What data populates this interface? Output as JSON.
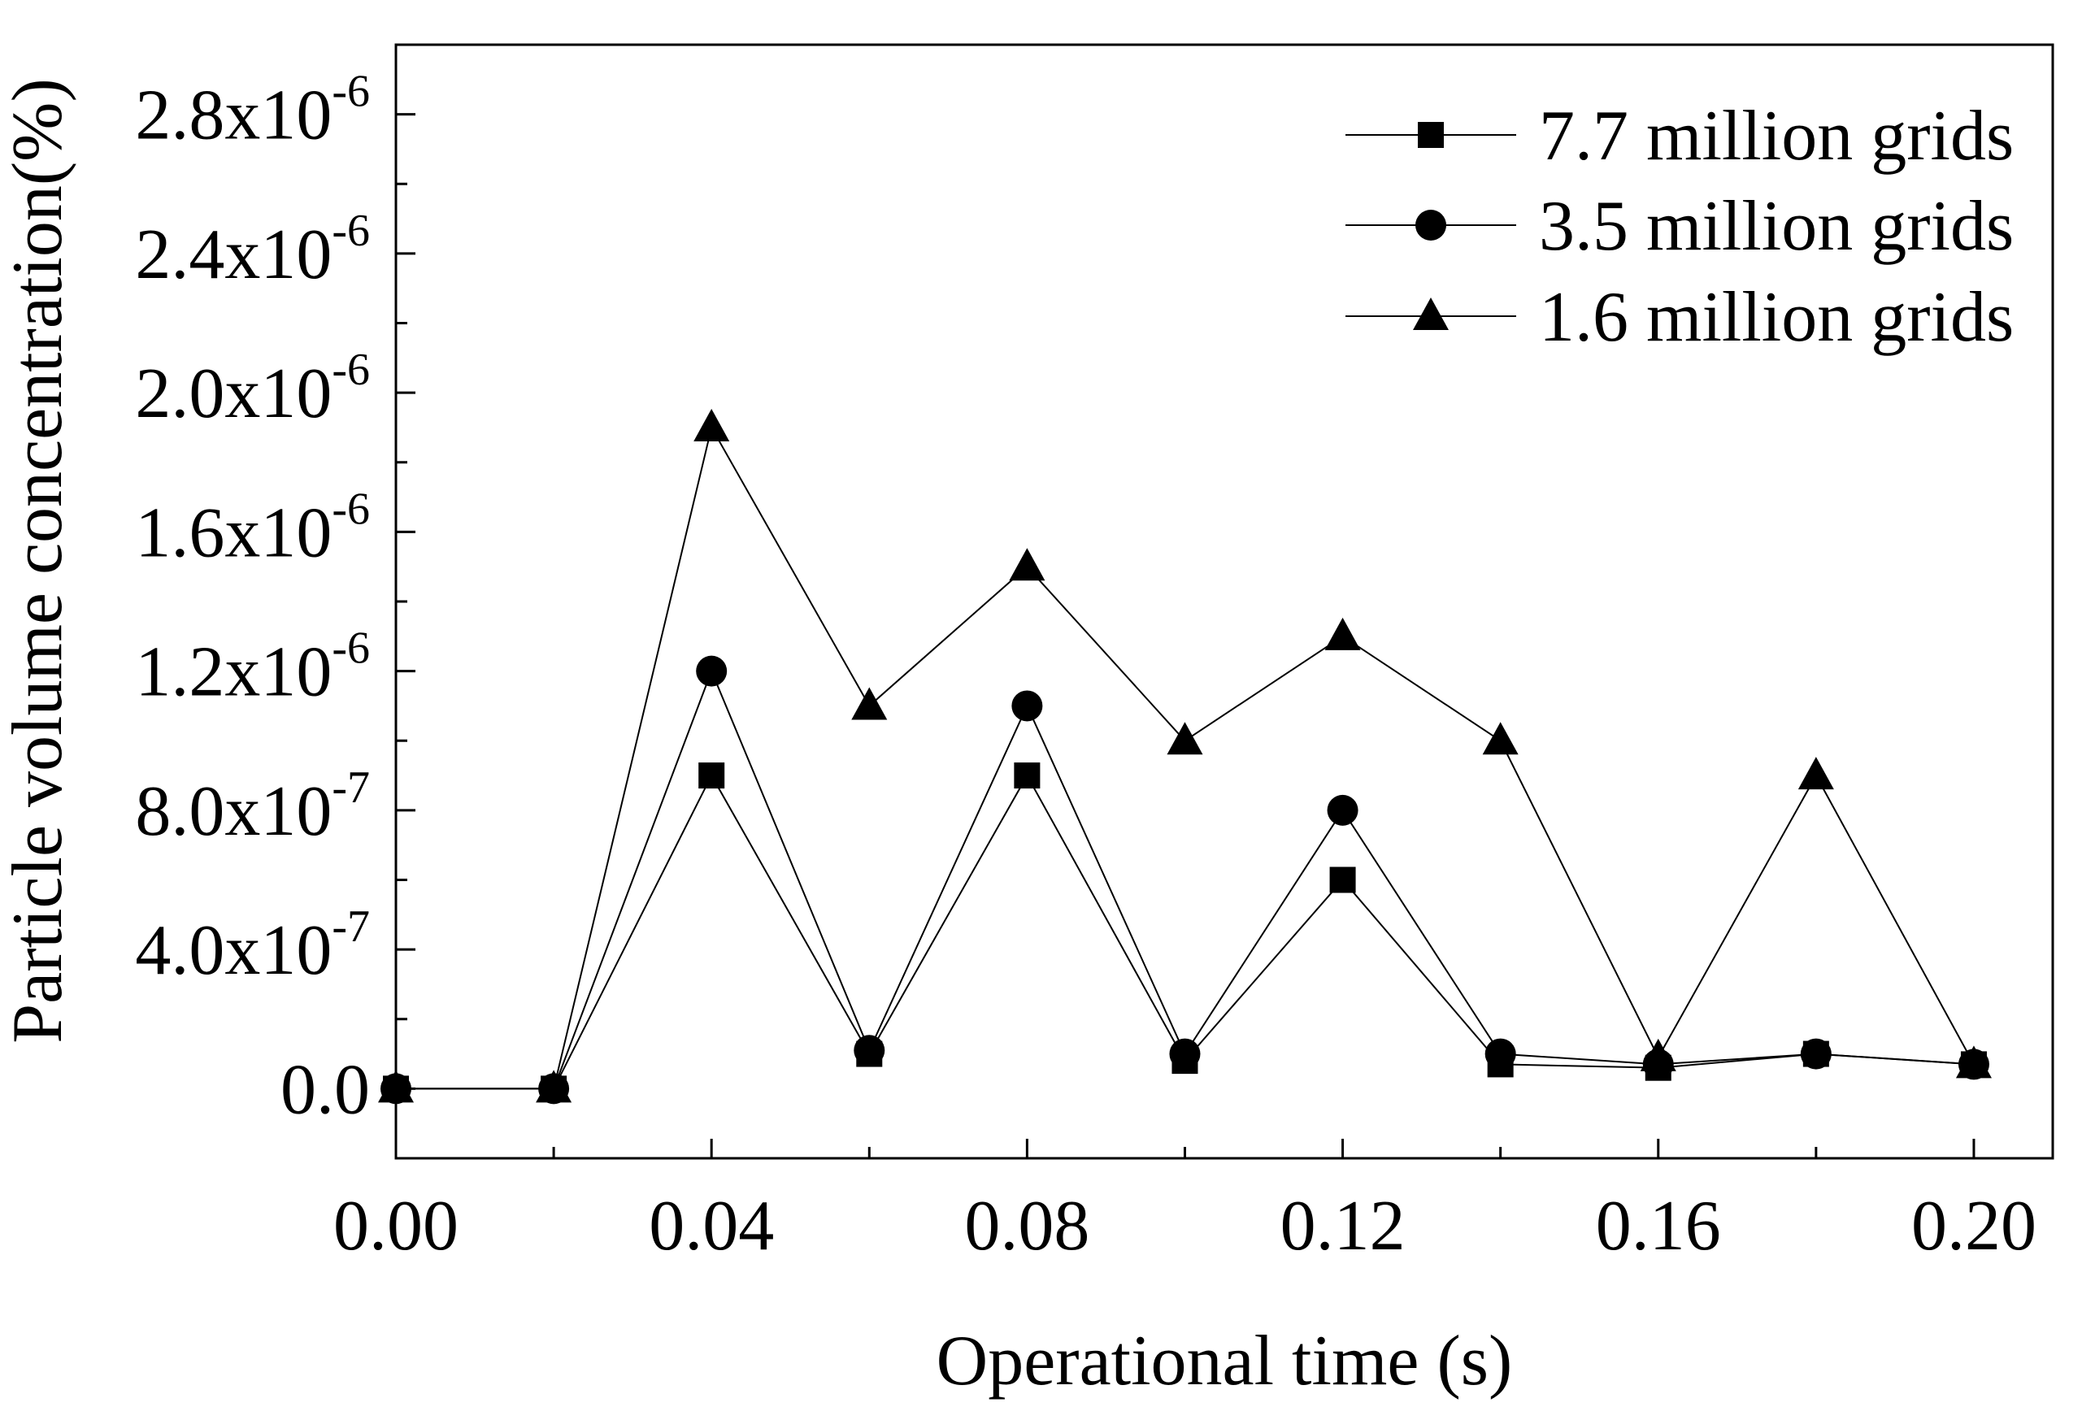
{
  "chart_data": {
    "type": "line",
    "title": "",
    "xlabel": "Operational time (s)",
    "ylabel": "Particle volume concentration(%)",
    "xlim": [
      0.0,
      0.21
    ],
    "ylim": [
      -2e-07,
      3e-06
    ],
    "x_ticks": [
      {
        "value": 0.0,
        "label": "0.00"
      },
      {
        "value": 0.04,
        "label": "0.04"
      },
      {
        "value": 0.08,
        "label": "0.08"
      },
      {
        "value": 0.12,
        "label": "0.12"
      },
      {
        "value": 0.16,
        "label": "0.16"
      },
      {
        "value": 0.2,
        "label": "0.20"
      }
    ],
    "x_minor_ticks": [
      0.02,
      0.06,
      0.1,
      0.14,
      0.18
    ],
    "y_ticks": [
      {
        "value": 0.0,
        "mantissa": "0.0",
        "exponent": ""
      },
      {
        "value": 4e-07,
        "mantissa": "4.0x10",
        "exponent": "-7"
      },
      {
        "value": 8e-07,
        "mantissa": "8.0x10",
        "exponent": "-7"
      },
      {
        "value": 1.2e-06,
        "mantissa": "1.2x10",
        "exponent": "-6"
      },
      {
        "value": 1.6e-06,
        "mantissa": "1.6x10",
        "exponent": "-6"
      },
      {
        "value": 2e-06,
        "mantissa": "2.0x10",
        "exponent": "-6"
      },
      {
        "value": 2.4e-06,
        "mantissa": "2.4x10",
        "exponent": "-6"
      },
      {
        "value": 2.8e-06,
        "mantissa": "2.8x10",
        "exponent": "-6"
      }
    ],
    "y_minor_ticks": [
      2e-07,
      6e-07,
      1e-06,
      1.4e-06,
      1.8e-06,
      2.2e-06,
      2.6e-06
    ],
    "x": [
      0.0,
      0.02,
      0.04,
      0.06,
      0.08,
      0.1,
      0.12,
      0.14,
      0.16,
      0.18,
      0.2
    ],
    "series": [
      {
        "name": "7.7 million grids",
        "marker": "square",
        "values": [
          0.0,
          0.0,
          9e-07,
          1e-07,
          9e-07,
          8e-08,
          6e-07,
          7e-08,
          6e-08,
          1e-07,
          7e-08
        ]
      },
      {
        "name": "3.5 million grids",
        "marker": "circle",
        "values": [
          0.0,
          0.0,
          1.2e-06,
          1.1e-07,
          1.1e-06,
          1e-07,
          8e-07,
          1e-07,
          7e-08,
          1e-07,
          7e-08
        ]
      },
      {
        "name": "1.6 million grids",
        "marker": "triangle",
        "values": [
          0.0,
          0.0,
          1.9e-06,
          1.1e-06,
          1.5e-06,
          1e-06,
          1.3e-06,
          1e-06,
          9e-08,
          9e-07,
          7e-08
        ]
      }
    ],
    "legend_position": "top-right",
    "grid": false,
    "colors": {
      "line": "#000000",
      "marker": "#000000",
      "background": "#ffffff"
    }
  }
}
